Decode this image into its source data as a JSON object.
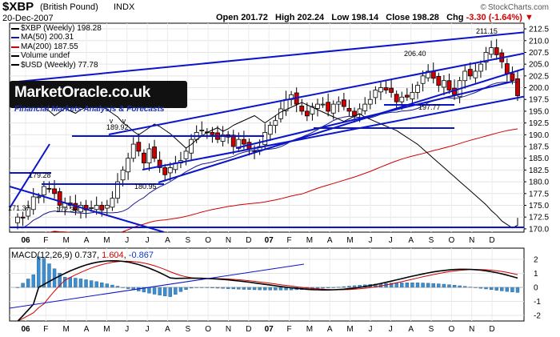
{
  "header": {
    "symbol": "$XBP",
    "name": "(British Pound)",
    "exchange": "INDX",
    "date": "20-Dec-2007",
    "open_label": "Open",
    "open": "201.72",
    "high_label": "High",
    "high": "202.24",
    "low_label": "Low",
    "low": "198.14",
    "close_label": "Close",
    "close": "198.28",
    "chg_label": "Chg",
    "chg": "-3.30 (-1.64%)",
    "chg_arrow": "▼",
    "credit": "StockCharts.com"
  },
  "legend": [
    {
      "label": "$XBP (Weekly) 198.28",
      "color": "#000000"
    },
    {
      "label": "MA(50) 200.31",
      "color": "#1a1a8c"
    },
    {
      "label": "MA(200) 187.55",
      "color": "#d00000"
    },
    {
      "label": "Volume undef",
      "color": "#000000"
    },
    {
      "label": "$USD (Weekly) 77.78",
      "color": "#000000"
    }
  ],
  "logo": {
    "title": "MarketOracle.co.uk",
    "tagline": "Financial Markets Analysis & Forecasts"
  },
  "colors": {
    "up": "#1a8c2a",
    "down": "#d00000",
    "trend": "#0a14c8",
    "ma50": "#1a1a8c",
    "ma200": "#d00000",
    "usd": "#000000",
    "hist": "#3b8fd0"
  },
  "chart_data": [
    {
      "type": "candlestick",
      "title": "$XBP (British Pound) INDX",
      "xlabel": "",
      "ylabel": "",
      "x_ticks": [
        "06",
        "F",
        "M",
        "A",
        "M",
        "J",
        "J",
        "A",
        "S",
        "O",
        "N",
        "D",
        "07",
        "F",
        "M",
        "A",
        "M",
        "J",
        "J",
        "A",
        "S",
        "O",
        "N",
        "D"
      ],
      "y_ticks": [
        170.0,
        172.5,
        175.0,
        177.5,
        180.0,
        182.5,
        185.0,
        187.5,
        190.0,
        192.5,
        195.0,
        197.5,
        200.0,
        202.5,
        205.0,
        207.5,
        210.0,
        212.5
      ],
      "ylim": [
        169.3,
        213.7
      ],
      "annotations": [
        "171.37",
        "179.28",
        "172.36",
        "189.92",
        "180.95",
        "206.40",
        "197.77",
        "211.15"
      ],
      "close_series": [
        172.5,
        172.3,
        174.5,
        176.8,
        176.8,
        179.0,
        178.5,
        177.5,
        175.0,
        175.5,
        175.0,
        174.0,
        175.0,
        174.0,
        174.5,
        175.0,
        174.0,
        175.0,
        176.5,
        180.0,
        182.5,
        185.0,
        188.0,
        186.5,
        184.0,
        187.0,
        185.0,
        183.0,
        181.5,
        183.0,
        184.0,
        184.5,
        186.5,
        189.0,
        190.5,
        191.0,
        190.5,
        190.0,
        189.0,
        190.0,
        189.5,
        187.5,
        189.0,
        188.0,
        187.0,
        186.5,
        187.5,
        190.5,
        192.0,
        193.0,
        195.5,
        197.5,
        198.5,
        196.5,
        195.0,
        194.0,
        196.0,
        196.5,
        196.5,
        195.0,
        196.5,
        197.0,
        196.0,
        195.0,
        194.0,
        195.5,
        196.5,
        197.5,
        199.5,
        200.0,
        199.5,
        199.0,
        197.0,
        198.0,
        198.0,
        199.0,
        200.5,
        202.5,
        203.5,
        202.0,
        200.5,
        201.5,
        199.5,
        198.5,
        201.5,
        203.5,
        202.5,
        203.5,
        205.0,
        207.5,
        208.5,
        207.0,
        205.5,
        203.0,
        201.5,
        198.3
      ]
    },
    {
      "type": "line",
      "title": "$USD (Weekly) 77.78",
      "note": "overlay on price panel"
    },
    {
      "type": "macd",
      "title": "MACD(12,26,9)",
      "series": [
        {
          "name": "MACD",
          "last": 0.737
        },
        {
          "name": "Signal",
          "last": 1.604
        },
        {
          "name": "Histogram",
          "last": -0.867
        }
      ],
      "label_prefix": "MACD(12,26,9)",
      "macd_value": "0.737",
      "signal_value": "1.604",
      "hist_value": "-0.867",
      "y_ticks": [
        2,
        1,
        0,
        -1,
        -2
      ],
      "ylim": [
        -2.4,
        2.8
      ],
      "x_ticks": [
        "06",
        "F",
        "M",
        "A",
        "M",
        "J",
        "J",
        "A",
        "S",
        "O",
        "N",
        "D",
        "07",
        "F",
        "M",
        "A",
        "M",
        "J",
        "J",
        "A",
        "S",
        "O",
        "N",
        "D"
      ]
    }
  ]
}
